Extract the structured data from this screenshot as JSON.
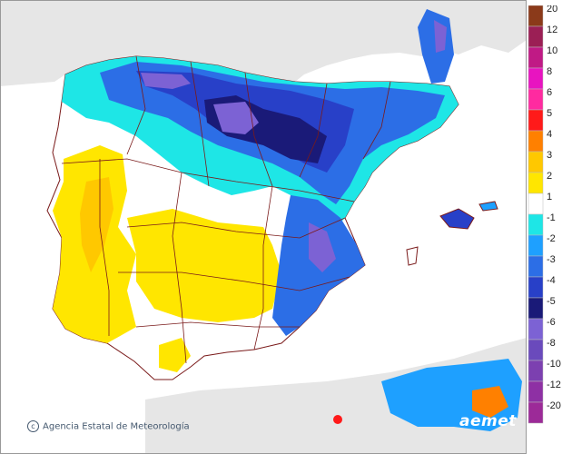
{
  "legend": {
    "title": "",
    "items": [
      {
        "label": "20",
        "color": "#8b3a1a"
      },
      {
        "label": "12",
        "color": "#9b1f55"
      },
      {
        "label": "10",
        "color": "#c01a85"
      },
      {
        "label": "8",
        "color": "#e814c0"
      },
      {
        "label": "6",
        "color": "#ff2aa0"
      },
      {
        "label": "5",
        "color": "#ff1a1a"
      },
      {
        "label": "4",
        "color": "#ff8000"
      },
      {
        "label": "3",
        "color": "#ffc800"
      },
      {
        "label": "2",
        "color": "#ffe600"
      },
      {
        "label": "1",
        "color": "#ffffff"
      },
      {
        "label": "-1",
        "color": "#1ee6e6"
      },
      {
        "label": "-2",
        "color": "#1ea0ff"
      },
      {
        "label": "-3",
        "color": "#2c6ee6"
      },
      {
        "label": "-4",
        "color": "#2840c8"
      },
      {
        "label": "-5",
        "color": "#1a1a78"
      },
      {
        "label": "-6",
        "color": "#7c62d4"
      },
      {
        "label": "-8",
        "color": "#6a4abc"
      },
      {
        "label": "-10",
        "color": "#7c40b0"
      },
      {
        "label": "-12",
        "color": "#8e30a4"
      },
      {
        "label": "-20",
        "color": "#9c2a98"
      }
    ]
  },
  "credit": "Agencia Estatal de Meteorología",
  "logo": "aemet",
  "colors": {
    "sea": "#ffffff",
    "foreign_land": "#e6e6e6",
    "border": "#7a1a1a",
    "frame": "#999999"
  }
}
